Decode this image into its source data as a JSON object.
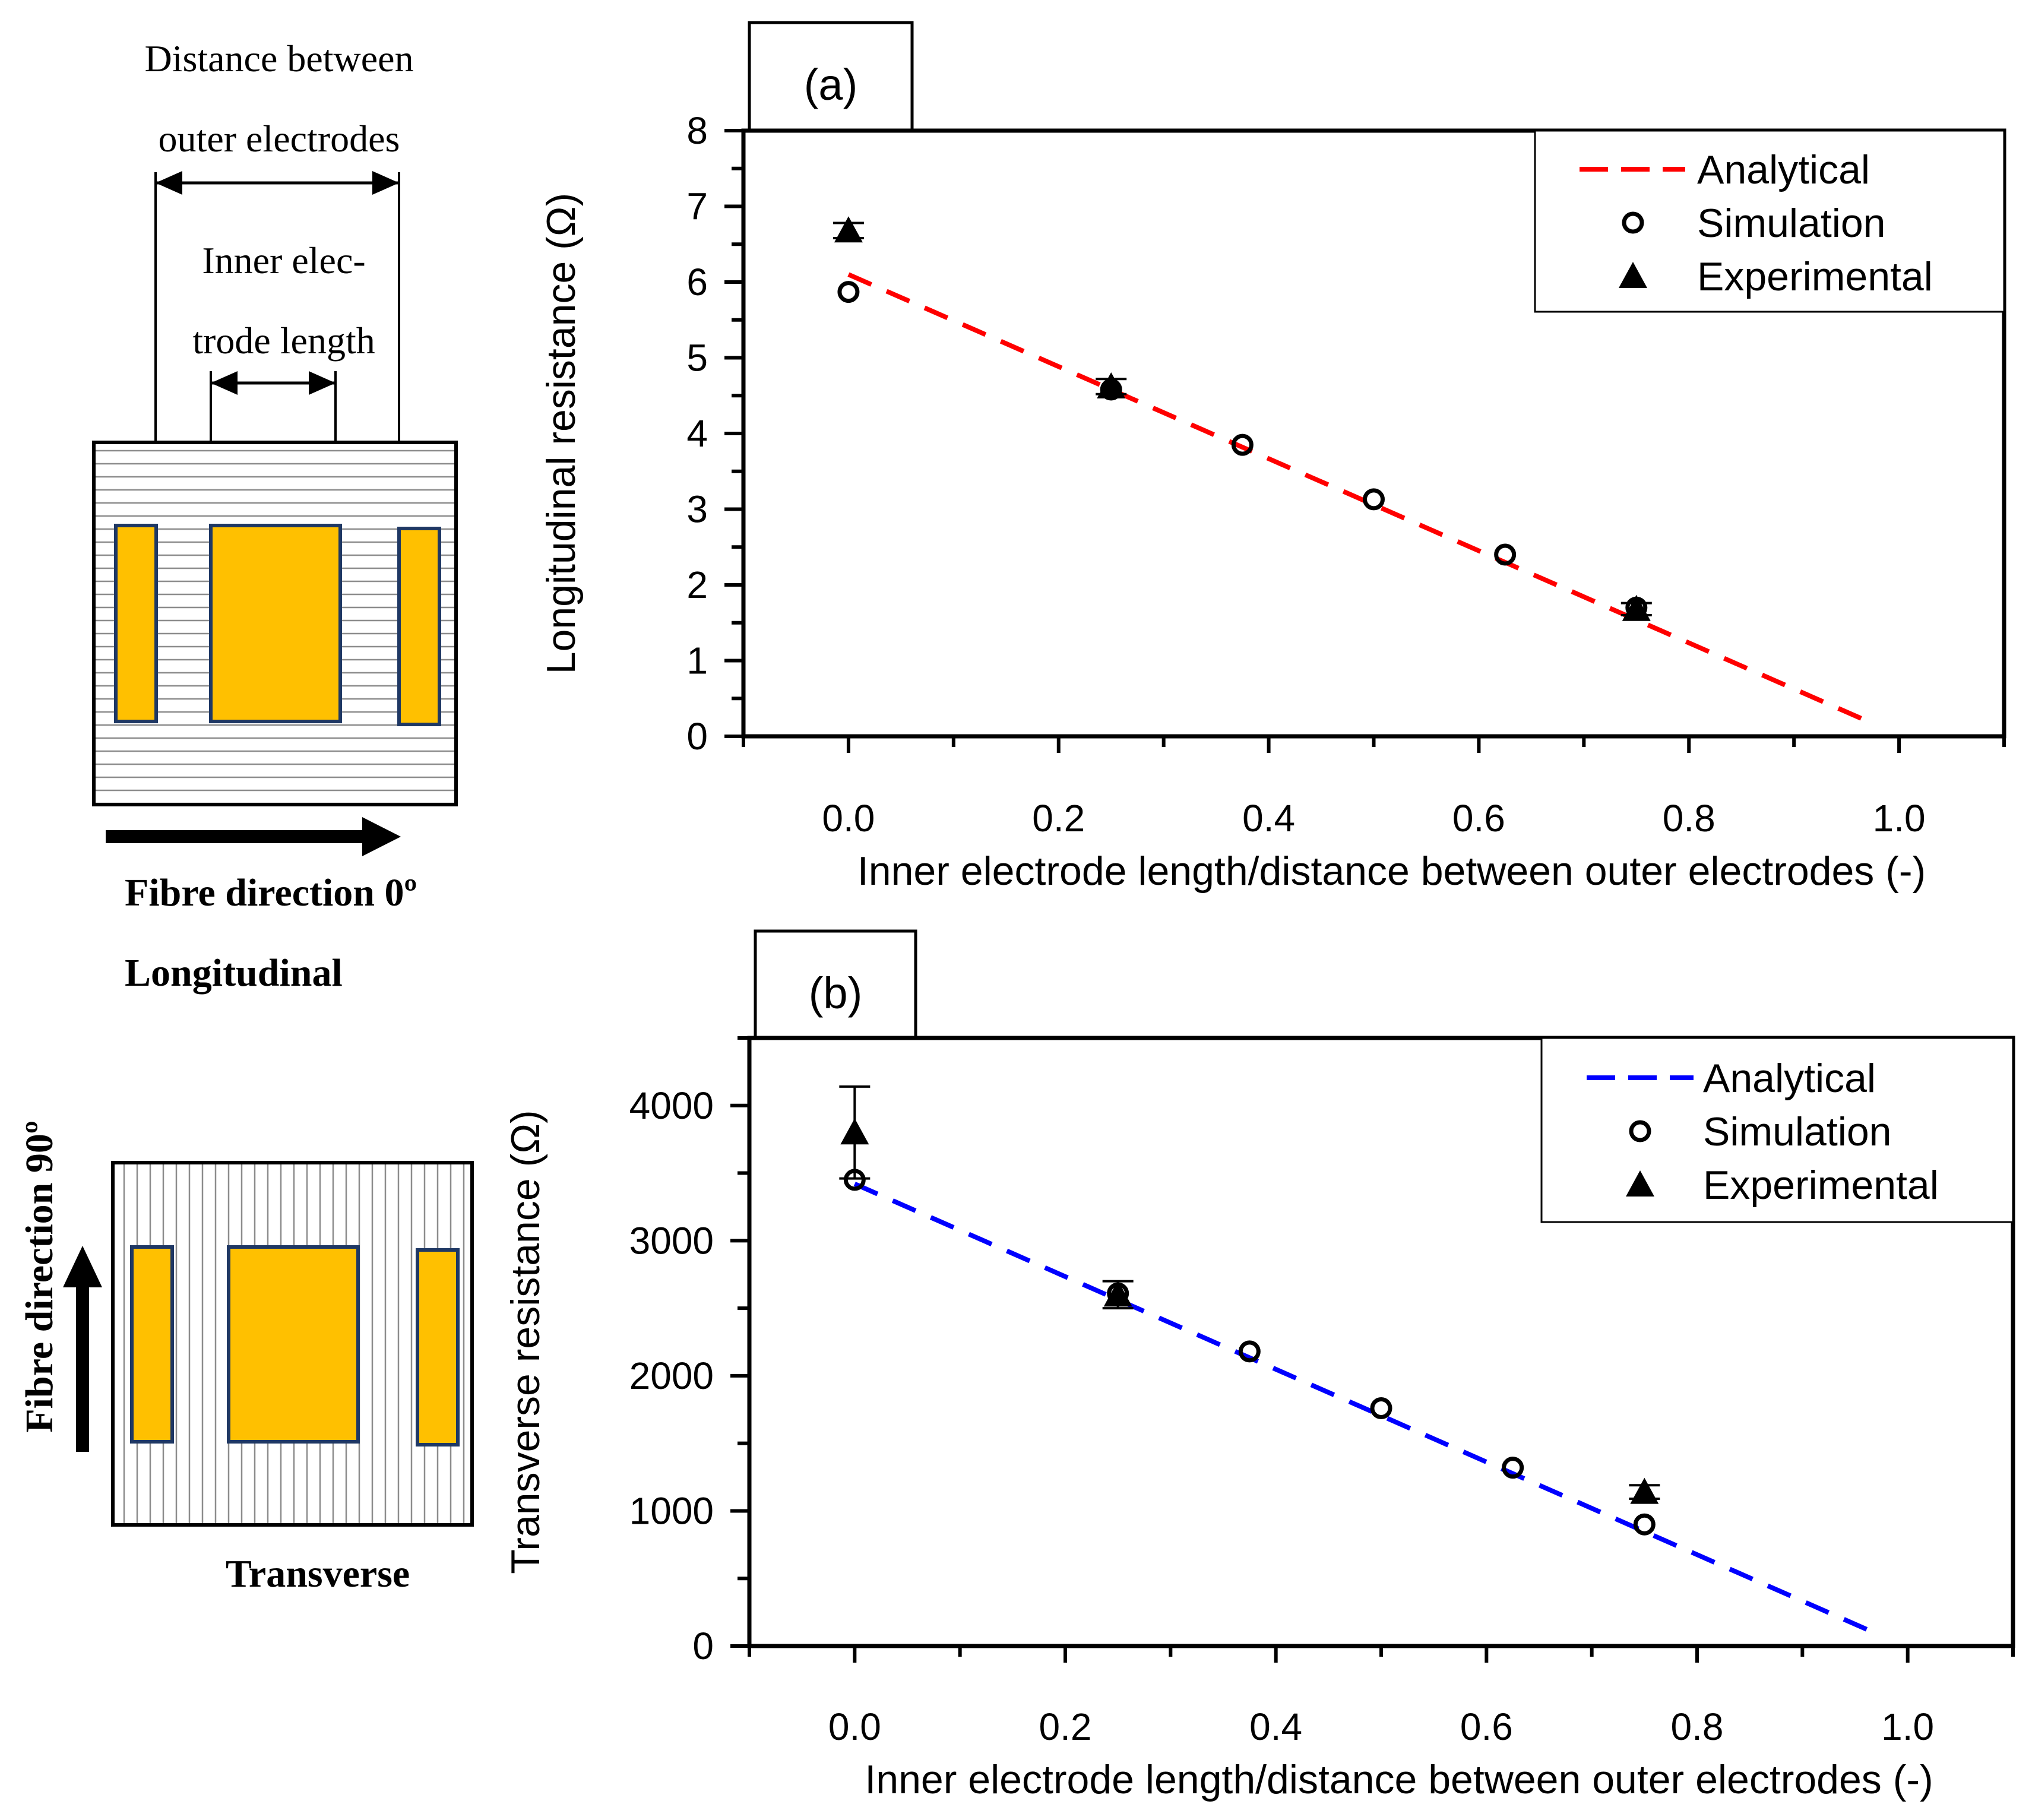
{
  "diagram": {
    "longitudinal": {
      "outer_label_line1": "Distance between",
      "outer_label_line2": "outer electrodes",
      "inner_label_line1": "Inner elec-",
      "inner_label_line2": "trode length",
      "direction_label": "Fibre  direction  0º",
      "mode_label": "Longitudinal"
    },
    "transverse": {
      "direction_label": "Fibre direction 90º",
      "mode_label": "Transverse"
    },
    "colors": {
      "electrode": "#FFC000",
      "electrode_border": "#1F3864",
      "stripes": "#808080"
    }
  },
  "chart_data": [
    {
      "type": "scatter",
      "panel_label": "(a)",
      "xlabel": "Inner electrode length/distance between outer electrodes (-)",
      "ylabel": "Longitudinal resistance (Ω)",
      "xlim": [
        -0.1,
        1.1
      ],
      "ylim": [
        0,
        8
      ],
      "xticks": [
        0.0,
        0.2,
        0.4,
        0.6,
        0.8,
        1.0
      ],
      "xtick_labels": [
        "0.0",
        "0.2",
        "0.4",
        "0.6",
        "0.8",
        "1.0"
      ],
      "yticks": [
        0,
        1,
        2,
        3,
        4,
        5,
        6,
        7,
        8
      ],
      "ytick_labels": [
        "0",
        "1",
        "2",
        "3",
        "4",
        "5",
        "6",
        "7",
        "8"
      ],
      "legend_position": "top-right",
      "series": [
        {
          "name": "Analytical",
          "kind": "dashed-line",
          "color": "#FF0000",
          "x": [
            0.0,
            0.97
          ],
          "y": [
            6.1,
            0.2
          ]
        },
        {
          "name": "Simulation",
          "kind": "open-circle",
          "color": "#000000",
          "x": [
            0.0,
            0.25,
            0.375,
            0.5,
            0.625,
            0.75
          ],
          "y": [
            5.87,
            4.58,
            3.85,
            3.13,
            2.4,
            1.7
          ]
        },
        {
          "name": "Experimental",
          "kind": "filled-triangle",
          "color": "#000000",
          "x": [
            0.0,
            0.25,
            0.75
          ],
          "y": [
            6.68,
            4.62,
            1.68
          ],
          "err": [
            0.1,
            0.1,
            0.08
          ]
        }
      ]
    },
    {
      "type": "scatter",
      "panel_label": "(b)",
      "xlabel": "Inner electrode length/distance between outer electrodes (-)",
      "ylabel": "Transverse resistance (Ω)",
      "xlim": [
        -0.1,
        1.1
      ],
      "ylim": [
        0,
        4500
      ],
      "xticks": [
        0.0,
        0.2,
        0.4,
        0.6,
        0.8,
        1.0
      ],
      "xtick_labels": [
        "0.0",
        "0.2",
        "0.4",
        "0.6",
        "0.8",
        "1.0"
      ],
      "yticks": [
        0,
        1000,
        2000,
        3000,
        4000
      ],
      "ytick_labels": [
        "0",
        "1000",
        "2000",
        "3000",
        "4000"
      ],
      "legend_position": "top-right",
      "series": [
        {
          "name": "Analytical",
          "kind": "dashed-line",
          "color": "#0000FF",
          "x": [
            0.0,
            0.965
          ],
          "y": [
            3420,
            110
          ]
        },
        {
          "name": "Simulation",
          "kind": "open-circle",
          "color": "#000000",
          "x": [
            0.0,
            0.25,
            0.375,
            0.5,
            0.625,
            0.75
          ],
          "y": [
            3450,
            2610,
            2180,
            1760,
            1320,
            900
          ]
        },
        {
          "name": "Experimental",
          "kind": "filled-triangle",
          "color": "#000000",
          "x": [
            0.0,
            0.25,
            0.75
          ],
          "y": [
            3800,
            2600,
            1140
          ],
          "err": [
            340,
            100,
            50
          ]
        }
      ]
    }
  ]
}
